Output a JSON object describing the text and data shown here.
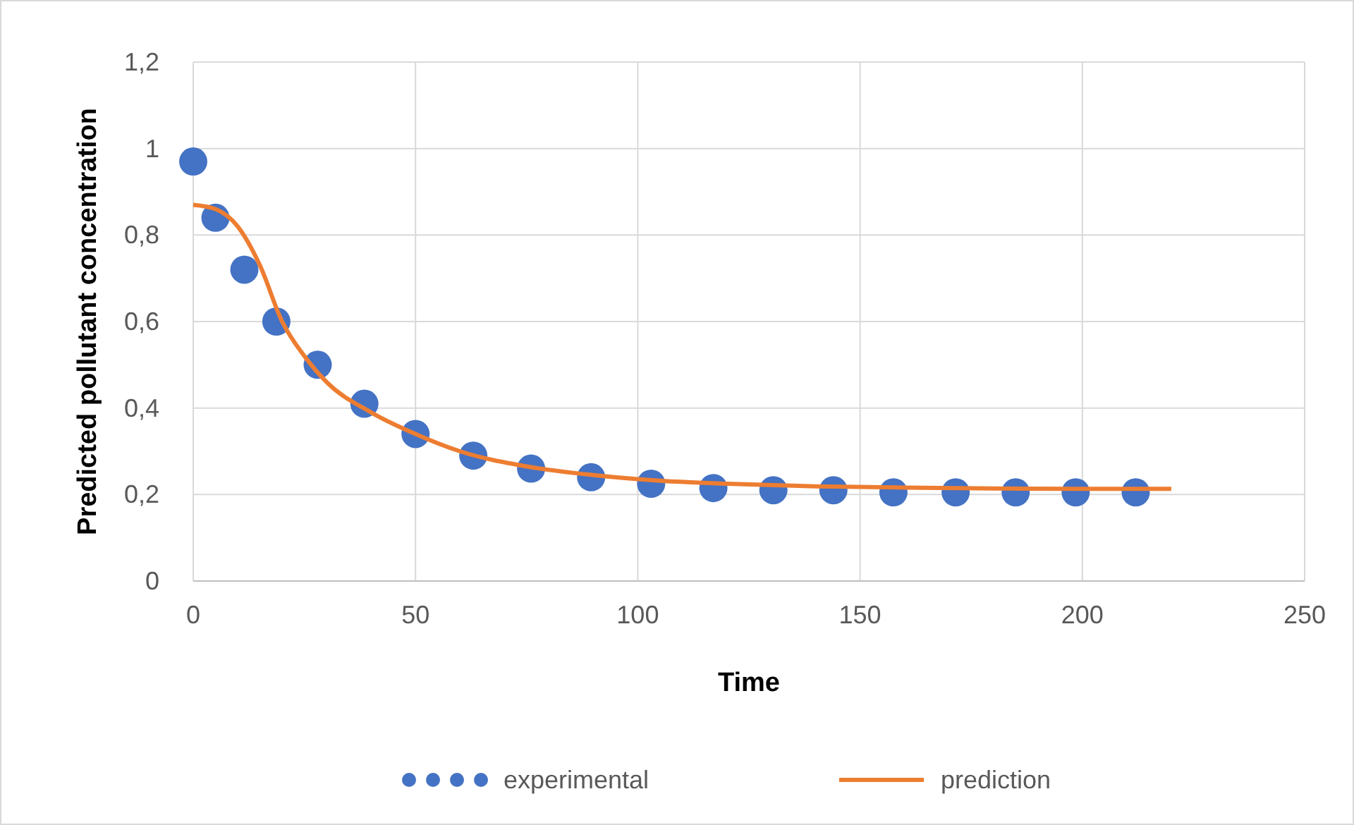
{
  "chart_data": {
    "type": "scatter",
    "xlabel": "Time",
    "ylabel": "Predicted pollutant concentration",
    "xlim": [
      0,
      250
    ],
    "xticks": [
      0,
      50,
      100,
      150,
      200,
      250
    ],
    "ylim": [
      0,
      1.2
    ],
    "yticks": [
      0,
      {
        "value": 0.2,
        "label": "0,2"
      },
      {
        "value": 0.4,
        "label": "0,4"
      },
      {
        "value": 0.6,
        "label": "0,6"
      },
      {
        "value": 0.8,
        "label": "0,8"
      },
      1,
      {
        "value": 1.2,
        "label": "1,2"
      }
    ],
    "grid": true,
    "legend": "bottom",
    "series": [
      {
        "name": "experimental",
        "type": "scatter",
        "marker": "circle",
        "color": "#4472c4",
        "x": [
          0,
          5,
          11.5,
          18.7,
          28,
          38.5,
          50,
          63,
          76,
          89.5,
          103,
          117,
          130.5,
          144,
          157.5,
          171.5,
          185,
          198.5,
          212
        ],
        "values": [
          0.97,
          0.84,
          0.72,
          0.6,
          0.5,
          0.41,
          0.34,
          0.29,
          0.26,
          0.24,
          0.225,
          0.215,
          0.21,
          0.21,
          0.205,
          0.205,
          0.205,
          0.205,
          0.205
        ]
      },
      {
        "name": "prediction",
        "type": "line",
        "marker": "none",
        "line_style": "solid",
        "color": "#ed7d31",
        "x": [
          0,
          5,
          10,
          15,
          20,
          25,
          30,
          40,
          50,
          60,
          75,
          90,
          105,
          120,
          140,
          160,
          180,
          200,
          220
        ],
        "values": [
          0.87,
          0.86,
          0.82,
          0.73,
          0.6,
          0.52,
          0.46,
          0.39,
          0.34,
          0.3,
          0.265,
          0.245,
          0.232,
          0.225,
          0.219,
          0.216,
          0.214,
          0.213,
          0.213
        ]
      }
    ]
  }
}
